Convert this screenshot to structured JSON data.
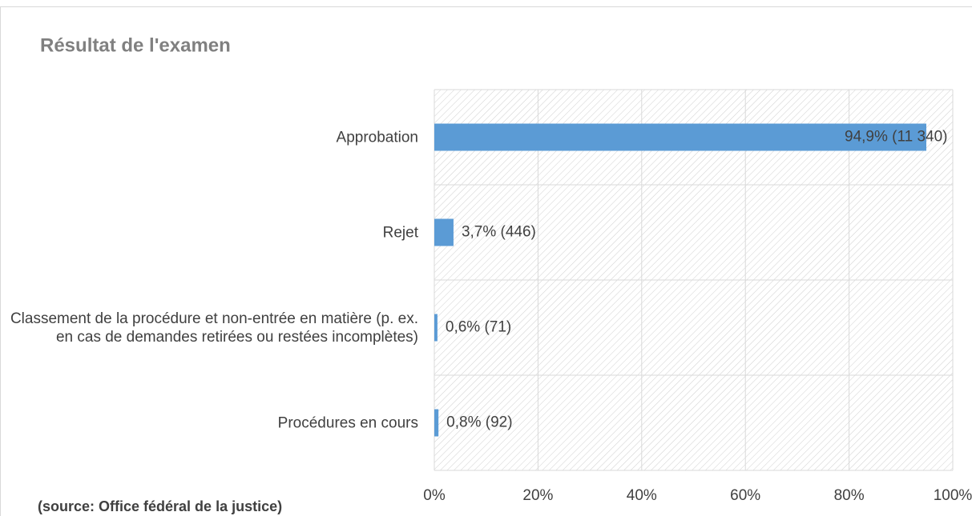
{
  "chart_data": {
    "type": "bar",
    "orientation": "horizontal",
    "title": "Résultat de l'examen",
    "categories": [
      "Approbation",
      "Rejet",
      "Classement de la procédure et non-entrée en matière (p. ex. en cas de demandes retirées ou restées incomplètes)",
      "Procédures en cours"
    ],
    "values": [
      94.9,
      3.7,
      0.6,
      0.8
    ],
    "value_labels": [
      "94,9% (11 340)",
      "3,7% (446)",
      "0,6% (71)",
      "0,8% (92)"
    ],
    "color": "#5b9bd5",
    "xlim": [
      0,
      100
    ],
    "xticks": [
      {
        "value": 0,
        "label": "0%"
      },
      {
        "value": 20,
        "label": "20%"
      },
      {
        "value": 40,
        "label": "40%"
      },
      {
        "value": 60,
        "label": "60%"
      },
      {
        "value": 80,
        "label": "80%"
      },
      {
        "value": 100,
        "label": "100%"
      }
    ],
    "grid": true,
    "source": "(source: Office fédéral de la justice)"
  }
}
